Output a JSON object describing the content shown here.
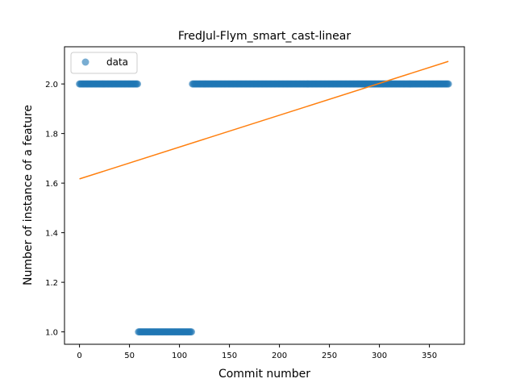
{
  "chart_data": {
    "type": "scatter",
    "title": "FredJul-Flym_smart_cast-linear",
    "xlabel": "Commit number",
    "ylabel": "Number of instance of a feature",
    "xlim": [
      -15,
      385
    ],
    "ylim": [
      0.95,
      2.15
    ],
    "xticks": [
      0,
      50,
      100,
      150,
      200,
      250,
      300,
      350
    ],
    "yticks": [
      1.0,
      1.2,
      1.4,
      1.6,
      1.8,
      2.0
    ],
    "xtick_labels": [
      "0",
      "50",
      "100",
      "150",
      "200",
      "250",
      "300",
      "350"
    ],
    "ytick_labels": [
      "1.0",
      "1.2",
      "1.4",
      "1.6",
      "1.8",
      "2.0"
    ],
    "grid": false,
    "legend": {
      "placement": "top-left",
      "entries": [
        "data"
      ]
    },
    "series": [
      {
        "name": "data",
        "kind": "points",
        "color": "#1f77b4",
        "segments": [
          {
            "x_start": 0,
            "x_end": 58,
            "y": 2.0
          },
          {
            "x_start": 59,
            "x_end": 112,
            "y": 1.0
          },
          {
            "x_start": 113,
            "x_end": 369,
            "y": 2.0
          }
        ]
      },
      {
        "kind": "line",
        "color": "#ff7f0e",
        "x": [
          0,
          369
        ],
        "y": [
          1.617,
          2.091
        ]
      }
    ]
  }
}
